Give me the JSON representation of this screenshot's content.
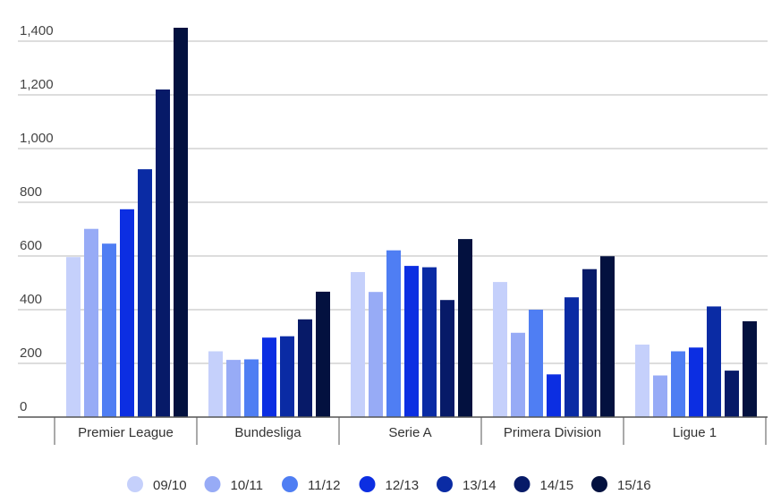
{
  "chart_data": {
    "type": "bar",
    "categories": [
      "Premier League",
      "Bundesliga",
      "Serie A",
      "Primera Division",
      "Ligue 1"
    ],
    "series": [
      {
        "name": "09/10",
        "color": "#c5d0fb",
        "values": [
          596,
          245,
          540,
          503,
          270
        ]
      },
      {
        "name": "10/11",
        "color": "#97abf6",
        "values": [
          701,
          213,
          466,
          314,
          155
        ]
      },
      {
        "name": "11/12",
        "color": "#4f7ef3",
        "values": [
          646,
          215,
          621,
          400,
          245
        ]
      },
      {
        "name": "12/13",
        "color": "#0c2ee2",
        "values": [
          774,
          296,
          563,
          159,
          259
        ]
      },
      {
        "name": "13/14",
        "color": "#0a2ba4",
        "values": [
          923,
          301,
          558,
          446,
          412
        ]
      },
      {
        "name": "14/15",
        "color": "#071a68",
        "values": [
          1220,
          364,
          436,
          551,
          173
        ]
      },
      {
        "name": "15/16",
        "color": "#03113f",
        "values": [
          1450,
          467,
          663,
          599,
          357
        ]
      }
    ],
    "y_ticks": [
      "0",
      "200",
      "400",
      "600",
      "800",
      "1,000",
      "1,200",
      "1,400"
    ],
    "ylim": [
      0,
      1400
    ],
    "grid": true,
    "legend_position": "bottom"
  }
}
